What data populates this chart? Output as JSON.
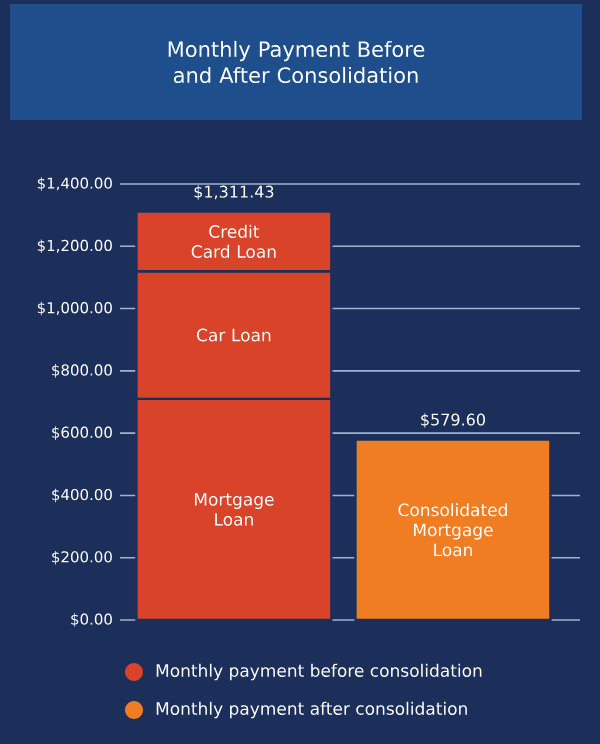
{
  "chart_data": {
    "type": "bar",
    "stacked": true,
    "title": "Monthly Payment Before and After Consolidation",
    "categories": [
      null,
      null
    ],
    "series": [
      {
        "name": "Mortgage Loan",
        "color": "#d9432a",
        "values": [
          710,
          null
        ]
      },
      {
        "name": "Car Loan",
        "color": "#d9432a",
        "values": [
          410,
          null
        ]
      },
      {
        "name": "Credit Card Loan",
        "color": "#d9432a",
        "values": [
          191.43,
          null
        ]
      },
      {
        "name": "Consolidated Mortgage Loan",
        "color": "#f07d21",
        "values": [
          null,
          579.6
        ]
      }
    ],
    "totals": [
      "$1,311.43",
      "$579.60"
    ],
    "ylim": [
      0,
      1400
    ],
    "yticks": [
      {
        "value": 0,
        "label": "$0.00"
      },
      {
        "value": 200,
        "label": "$200.00"
      },
      {
        "value": 400,
        "label": "$400.00"
      },
      {
        "value": 600,
        "label": "$600.00"
      },
      {
        "value": 800,
        "label": "$800.00"
      },
      {
        "value": 1000,
        "label": "$1,000.00"
      },
      {
        "value": 1200,
        "label": "$1,200.00"
      },
      {
        "value": 1400,
        "label": "$1,400.00"
      }
    ],
    "grid": "y",
    "annotations": [
      "Monthly payment before consolidation",
      "Monthly payment after consolidation"
    ]
  }
}
